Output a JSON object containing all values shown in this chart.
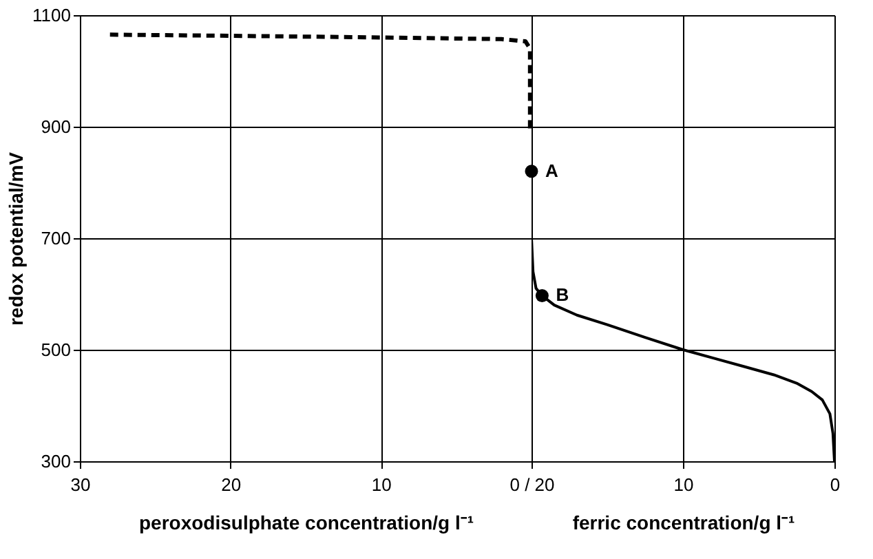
{
  "chart_data": [
    {
      "type": "line",
      "ylabel": "redox potential/mV",
      "xlabel": "peroxodisulphate concentration/g l⁻¹",
      "xlim": [
        30,
        0
      ],
      "xticks": [
        30,
        20,
        10,
        {
          "value": 0,
          "label": "0 / 20"
        }
      ],
      "ylim": [
        300,
        1100
      ],
      "yticks": [
        300,
        500,
        700,
        900,
        1100
      ],
      "grid": true,
      "line_style": "dashed",
      "marker": "none",
      "series": [
        {
          "color": "#000000",
          "x": [
            28,
            20,
            10,
            2,
            0.4,
            0.1,
            0.1
          ],
          "values": [
            1065,
            1063,
            1060,
            1057,
            1053,
            1040,
            895
          ]
        }
      ]
    },
    {
      "type": "line",
      "xlabel": "ferric concentration/g l⁻¹",
      "xlim": [
        20,
        0
      ],
      "xticks": [
        {
          "value": 20,
          "label": null
        },
        10,
        0
      ],
      "ylim": [
        300,
        1100
      ],
      "yticks": [
        300,
        500,
        700,
        900,
        1100
      ],
      "grid": true,
      "tick_labels": "x",
      "line_style": "solid",
      "marker": "none",
      "series": [
        {
          "color": "#000000",
          "x": [
            20,
            20,
            19.9,
            19.7,
            19.3,
            18.5,
            17,
            15,
            12.5,
            10,
            8,
            6,
            4,
            2.5,
            1.5,
            0.8,
            0.3,
            0.1,
            0
          ],
          "values": [
            900,
            700,
            640,
            610,
            597,
            580,
            562,
            545,
            522,
            500,
            485,
            470,
            455,
            440,
            425,
            410,
            385,
            350,
            300
          ]
        },
        {
          "type": "scatter",
          "marker": "circle",
          "color": "#000000",
          "x": [
            20,
            19.3
          ],
          "values": [
            820,
            597
          ]
        }
      ],
      "annotations": [
        {
          "text": "A",
          "x": 20,
          "y": 820
        },
        {
          "text": "B",
          "x": 19.3,
          "y": 597
        }
      ]
    }
  ]
}
